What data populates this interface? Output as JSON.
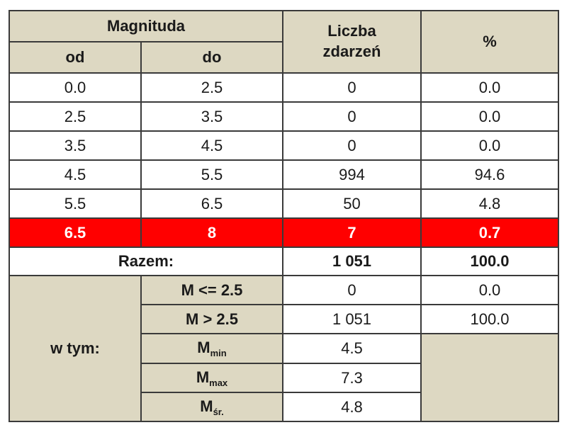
{
  "table": {
    "header": {
      "magnitude": "Magnituda",
      "from": "od",
      "to": "do",
      "count": "Liczba zdarzeń",
      "percent": "%"
    },
    "rows": [
      [
        "0.0",
        "2.5",
        "0",
        "0.0"
      ],
      [
        "2.5",
        "3.5",
        "0",
        "0.0"
      ],
      [
        "3.5",
        "4.5",
        "0",
        "0.0"
      ],
      [
        "4.5",
        "5.5",
        "994",
        "94.6"
      ],
      [
        "5.5",
        "6.5",
        "50",
        "4.8"
      ],
      [
        "6.5",
        "8",
        "7",
        "0.7"
      ]
    ],
    "total": {
      "label": "Razem:",
      "count": "1 051",
      "percent": "100.0"
    },
    "breakdown": {
      "label": "w tym:",
      "rows": [
        {
          "label": "M <= 2.5",
          "count": "0",
          "percent": "0.0"
        },
        {
          "label": "M > 2.5",
          "count": "1 051",
          "percent": "100.0"
        },
        {
          "label": "M",
          "sub": "min",
          "count": "4.5"
        },
        {
          "label": "M",
          "sub": "max",
          "count": "7.3"
        },
        {
          "label": "M",
          "sub": "śr.",
          "count": "4.8"
        }
      ]
    }
  }
}
